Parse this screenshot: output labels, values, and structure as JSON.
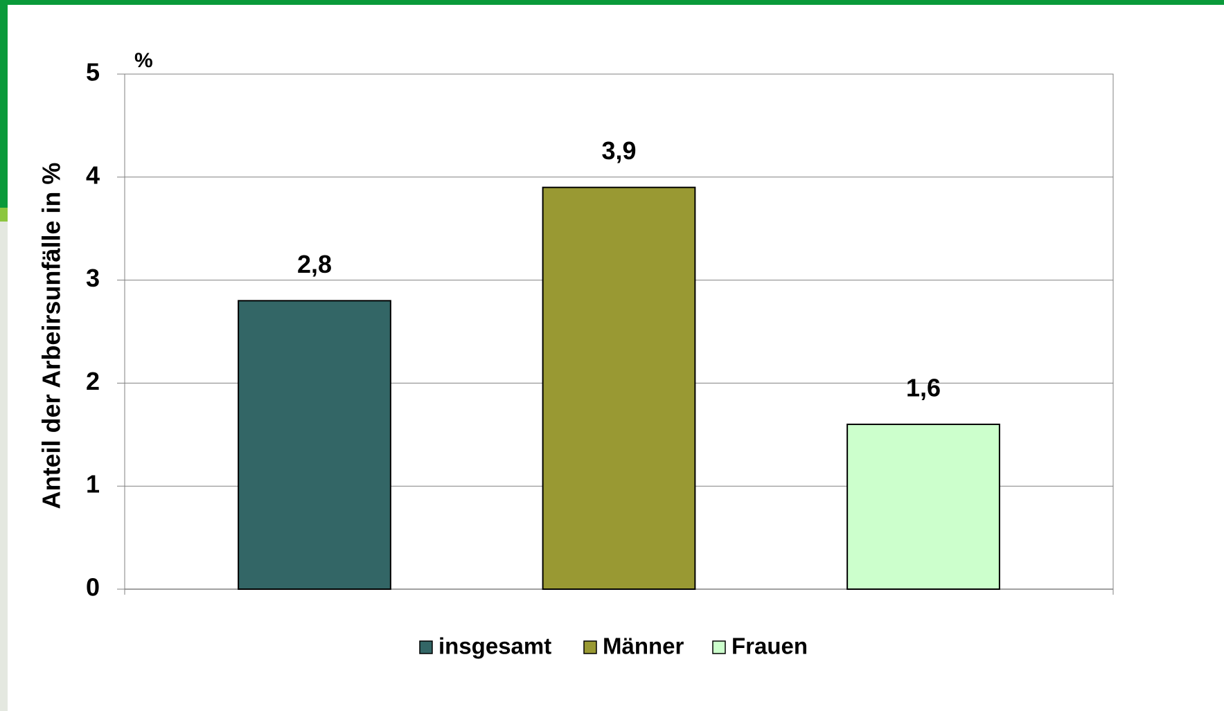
{
  "chart_data": {
    "type": "bar",
    "y_axis_label": "Anteil der Arbeirsunfälle in %",
    "y_unit_label": "%",
    "categories": [
      null
    ],
    "series": [
      {
        "name": "insgesamt",
        "color": "#336666",
        "values": [
          2.8
        ],
        "value_labels": [
          "2,8"
        ]
      },
      {
        "name": "Männer",
        "color": "#999933",
        "values": [
          3.9
        ],
        "value_labels": [
          "3,9"
        ]
      },
      {
        "name": "Frauen",
        "color": "#ccffcc",
        "values": [
          1.6
        ],
        "value_labels": [
          "1,6"
        ]
      }
    ],
    "ylim": [
      0,
      5
    ],
    "yticks": [
      0,
      1,
      2,
      3,
      4,
      5
    ],
    "grid": true
  }
}
